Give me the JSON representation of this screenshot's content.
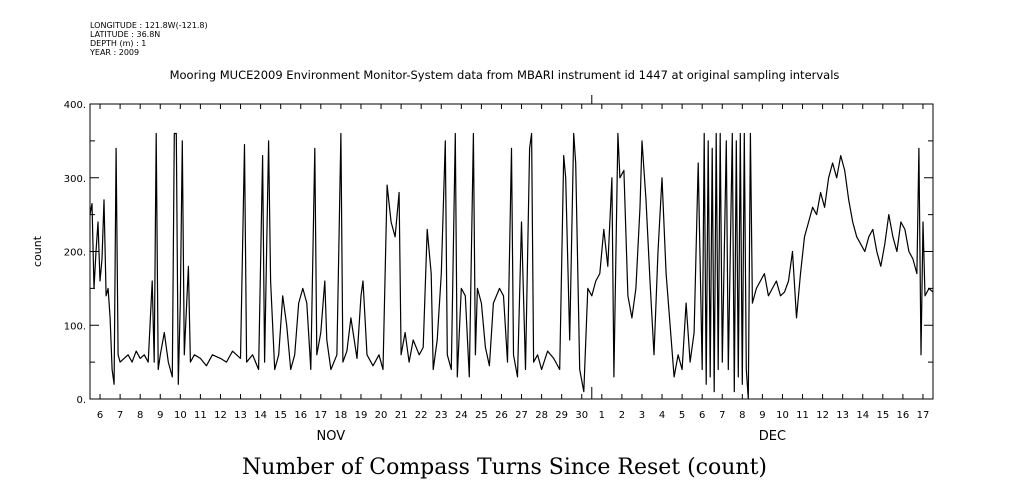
{
  "metadata": {
    "longitude": "LONGITUDE : 121.8W(-121.8)",
    "latitude": "LATITUDE : 36.8N",
    "depth": "DEPTH (m) : 1",
    "year": "YEAR : 2009"
  },
  "chart_data": {
    "type": "line",
    "title": "Mooring MUCE2009 Environment Monitor-System data from MBARI instrument id 1447 at original sampling intervals",
    "subtitle": "Number of Compass Turns Since Reset (count)",
    "ylabel": "count",
    "xlabel": "",
    "ylim": [
      0,
      400
    ],
    "yticks": [
      0,
      100,
      200,
      300,
      400
    ],
    "ytick_labels": [
      "0.",
      "100.",
      "200.",
      "300.",
      "400."
    ],
    "xlim": [
      5.5,
      47.5
    ],
    "x_day_ticks": [
      {
        "x": 6,
        "label": "6"
      },
      {
        "x": 7,
        "label": "7"
      },
      {
        "x": 8,
        "label": "8"
      },
      {
        "x": 9,
        "label": "9"
      },
      {
        "x": 10,
        "label": "10"
      },
      {
        "x": 11,
        "label": "11"
      },
      {
        "x": 12,
        "label": "12"
      },
      {
        "x": 13,
        "label": "13"
      },
      {
        "x": 14,
        "label": "14"
      },
      {
        "x": 15,
        "label": "15"
      },
      {
        "x": 16,
        "label": "16"
      },
      {
        "x": 17,
        "label": "17"
      },
      {
        "x": 18,
        "label": "18"
      },
      {
        "x": 19,
        "label": "19"
      },
      {
        "x": 20,
        "label": "20"
      },
      {
        "x": 21,
        "label": "21"
      },
      {
        "x": 22,
        "label": "22"
      },
      {
        "x": 23,
        "label": "23"
      },
      {
        "x": 24,
        "label": "24"
      },
      {
        "x": 25,
        "label": "25"
      },
      {
        "x": 26,
        "label": "26"
      },
      {
        "x": 27,
        "label": "27"
      },
      {
        "x": 28,
        "label": "28"
      },
      {
        "x": 29,
        "label": "29"
      },
      {
        "x": 30,
        "label": "30"
      },
      {
        "x": 31,
        "label": "1"
      },
      {
        "x": 32,
        "label": "2"
      },
      {
        "x": 33,
        "label": "3"
      },
      {
        "x": 34,
        "label": "4"
      },
      {
        "x": 35,
        "label": "5"
      },
      {
        "x": 36,
        "label": "6"
      },
      {
        "x": 37,
        "label": "7"
      },
      {
        "x": 38,
        "label": "8"
      },
      {
        "x": 39,
        "label": "9"
      },
      {
        "x": 40,
        "label": "10"
      },
      {
        "x": 41,
        "label": "11"
      },
      {
        "x": 42,
        "label": "12"
      },
      {
        "x": 43,
        "label": "13"
      },
      {
        "x": 44,
        "label": "14"
      },
      {
        "x": 45,
        "label": "15"
      },
      {
        "x": 46,
        "label": "16"
      },
      {
        "x": 47,
        "label": "17"
      }
    ],
    "month_labels": [
      {
        "x": 17.5,
        "label": "NOV"
      },
      {
        "x": 39.5,
        "label": "DEC"
      }
    ],
    "series": [
      {
        "values": [
          [
            5.5,
            250
          ],
          [
            5.6,
            265
          ],
          [
            5.7,
            150
          ],
          [
            5.8,
            200
          ],
          [
            5.9,
            240
          ],
          [
            6.0,
            160
          ],
          [
            6.1,
            190
          ],
          [
            6.2,
            270
          ],
          [
            6.3,
            140
          ],
          [
            6.4,
            150
          ],
          [
            6.5,
            110
          ],
          [
            6.6,
            40
          ],
          [
            6.7,
            20
          ],
          [
            6.8,
            340
          ],
          [
            6.9,
            60
          ],
          [
            7.0,
            50
          ],
          [
            7.2,
            55
          ],
          [
            7.4,
            60
          ],
          [
            7.6,
            50
          ],
          [
            7.8,
            65
          ],
          [
            8.0,
            55
          ],
          [
            8.2,
            60
          ],
          [
            8.4,
            50
          ],
          [
            8.6,
            160
          ],
          [
            8.7,
            50
          ],
          [
            8.8,
            360
          ],
          [
            8.9,
            40
          ],
          [
            9.0,
            60
          ],
          [
            9.2,
            90
          ],
          [
            9.4,
            50
          ],
          [
            9.6,
            30
          ],
          [
            9.7,
            360
          ],
          [
            9.8,
            360
          ],
          [
            9.9,
            20
          ],
          [
            10.0,
            130
          ],
          [
            10.1,
            350
          ],
          [
            10.2,
            60
          ],
          [
            10.4,
            180
          ],
          [
            10.5,
            50
          ],
          [
            10.7,
            60
          ],
          [
            11.0,
            55
          ],
          [
            11.3,
            45
          ],
          [
            11.6,
            60
          ],
          [
            12.0,
            55
          ],
          [
            12.3,
            50
          ],
          [
            12.6,
            65
          ],
          [
            13.0,
            55
          ],
          [
            13.2,
            345
          ],
          [
            13.3,
            50
          ],
          [
            13.6,
            60
          ],
          [
            13.9,
            40
          ],
          [
            14.1,
            330
          ],
          [
            14.2,
            50
          ],
          [
            14.4,
            350
          ],
          [
            14.5,
            160
          ],
          [
            14.7,
            40
          ],
          [
            14.9,
            60
          ],
          [
            15.1,
            140
          ],
          [
            15.3,
            100
          ],
          [
            15.5,
            40
          ],
          [
            15.7,
            60
          ],
          [
            15.9,
            130
          ],
          [
            16.1,
            150
          ],
          [
            16.3,
            130
          ],
          [
            16.5,
            40
          ],
          [
            16.7,
            340
          ],
          [
            16.8,
            60
          ],
          [
            17.0,
            90
          ],
          [
            17.2,
            160
          ],
          [
            17.3,
            80
          ],
          [
            17.5,
            40
          ],
          [
            17.8,
            60
          ],
          [
            18.0,
            360
          ],
          [
            18.1,
            50
          ],
          [
            18.3,
            65
          ],
          [
            18.5,
            110
          ],
          [
            18.8,
            55
          ],
          [
            19.0,
            140
          ],
          [
            19.1,
            160
          ],
          [
            19.3,
            60
          ],
          [
            19.6,
            45
          ],
          [
            19.9,
            60
          ],
          [
            20.1,
            40
          ],
          [
            20.3,
            290
          ],
          [
            20.5,
            240
          ],
          [
            20.7,
            220
          ],
          [
            20.9,
            280
          ],
          [
            21.0,
            60
          ],
          [
            21.2,
            90
          ],
          [
            21.4,
            50
          ],
          [
            21.6,
            80
          ],
          [
            21.9,
            60
          ],
          [
            22.1,
            70
          ],
          [
            22.3,
            230
          ],
          [
            22.5,
            170
          ],
          [
            22.6,
            40
          ],
          [
            22.8,
            80
          ],
          [
            23.0,
            170
          ],
          [
            23.2,
            350
          ],
          [
            23.3,
            60
          ],
          [
            23.5,
            40
          ],
          [
            23.7,
            360
          ],
          [
            23.8,
            30
          ],
          [
            24.0,
            150
          ],
          [
            24.2,
            140
          ],
          [
            24.4,
            30
          ],
          [
            24.6,
            360
          ],
          [
            24.7,
            60
          ],
          [
            24.8,
            150
          ],
          [
            25.0,
            130
          ],
          [
            25.2,
            70
          ],
          [
            25.4,
            45
          ],
          [
            25.6,
            130
          ],
          [
            25.9,
            150
          ],
          [
            26.1,
            140
          ],
          [
            26.3,
            50
          ],
          [
            26.5,
            340
          ],
          [
            26.6,
            60
          ],
          [
            26.8,
            30
          ],
          [
            27.0,
            240
          ],
          [
            27.2,
            40
          ],
          [
            27.4,
            340
          ],
          [
            27.5,
            360
          ],
          [
            27.6,
            50
          ],
          [
            27.8,
            60
          ],
          [
            28.0,
            40
          ],
          [
            28.3,
            65
          ],
          [
            28.6,
            55
          ],
          [
            28.9,
            40
          ],
          [
            29.1,
            330
          ],
          [
            29.2,
            300
          ],
          [
            29.4,
            80
          ],
          [
            29.6,
            360
          ],
          [
            29.7,
            320
          ],
          [
            29.9,
            40
          ],
          [
            30.1,
            10
          ],
          [
            30.3,
            150
          ],
          [
            30.5,
            140
          ],
          [
            30.7,
            160
          ],
          [
            30.9,
            170
          ],
          [
            31.1,
            230
          ],
          [
            31.3,
            180
          ],
          [
            31.5,
            300
          ],
          [
            31.6,
            30
          ],
          [
            31.8,
            360
          ],
          [
            31.9,
            300
          ],
          [
            32.1,
            310
          ],
          [
            32.3,
            140
          ],
          [
            32.5,
            110
          ],
          [
            32.7,
            150
          ],
          [
            32.9,
            260
          ],
          [
            33.0,
            350
          ],
          [
            33.2,
            270
          ],
          [
            33.4,
            160
          ],
          [
            33.6,
            60
          ],
          [
            33.8,
            200
          ],
          [
            34.0,
            300
          ],
          [
            34.2,
            170
          ],
          [
            34.4,
            100
          ],
          [
            34.6,
            30
          ],
          [
            34.8,
            60
          ],
          [
            35.0,
            40
          ],
          [
            35.2,
            130
          ],
          [
            35.4,
            50
          ],
          [
            35.6,
            90
          ],
          [
            35.8,
            320
          ],
          [
            36.0,
            40
          ],
          [
            36.1,
            360
          ],
          [
            36.2,
            20
          ],
          [
            36.3,
            350
          ],
          [
            36.4,
            30
          ],
          [
            36.5,
            340
          ],
          [
            36.6,
            10
          ],
          [
            36.7,
            360
          ],
          [
            36.8,
            40
          ],
          [
            36.9,
            360
          ],
          [
            37.0,
            50
          ],
          [
            37.2,
            350
          ],
          [
            37.3,
            40
          ],
          [
            37.5,
            360
          ],
          [
            37.6,
            10
          ],
          [
            37.7,
            350
          ],
          [
            37.8,
            30
          ],
          [
            37.9,
            360
          ],
          [
            38.0,
            20
          ],
          [
            38.1,
            360
          ],
          [
            38.2,
            40
          ],
          [
            38.3,
            0
          ],
          [
            38.4,
            360
          ],
          [
            38.5,
            130
          ],
          [
            38.7,
            150
          ],
          [
            38.9,
            160
          ],
          [
            39.1,
            170
          ],
          [
            39.3,
            140
          ],
          [
            39.5,
            150
          ],
          [
            39.7,
            160
          ],
          [
            39.9,
            140
          ],
          [
            40.1,
            145
          ],
          [
            40.3,
            160
          ],
          [
            40.5,
            200
          ],
          [
            40.7,
            110
          ],
          [
            40.9,
            170
          ],
          [
            41.1,
            220
          ],
          [
            41.3,
            240
          ],
          [
            41.5,
            260
          ],
          [
            41.7,
            250
          ],
          [
            41.9,
            280
          ],
          [
            42.1,
            260
          ],
          [
            42.3,
            300
          ],
          [
            42.5,
            320
          ],
          [
            42.7,
            300
          ],
          [
            42.9,
            330
          ],
          [
            43.1,
            310
          ],
          [
            43.3,
            270
          ],
          [
            43.5,
            240
          ],
          [
            43.7,
            220
          ],
          [
            43.9,
            210
          ],
          [
            44.1,
            200
          ],
          [
            44.3,
            220
          ],
          [
            44.5,
            230
          ],
          [
            44.7,
            200
          ],
          [
            44.9,
            180
          ],
          [
            45.1,
            210
          ],
          [
            45.3,
            250
          ],
          [
            45.5,
            220
          ],
          [
            45.7,
            200
          ],
          [
            45.9,
            240
          ],
          [
            46.1,
            230
          ],
          [
            46.3,
            200
          ],
          [
            46.5,
            190
          ],
          [
            46.7,
            170
          ],
          [
            46.8,
            340
          ],
          [
            46.9,
            60
          ],
          [
            47.0,
            240
          ],
          [
            47.1,
            140
          ],
          [
            47.3,
            150
          ],
          [
            47.5,
            145
          ]
        ]
      }
    ]
  }
}
